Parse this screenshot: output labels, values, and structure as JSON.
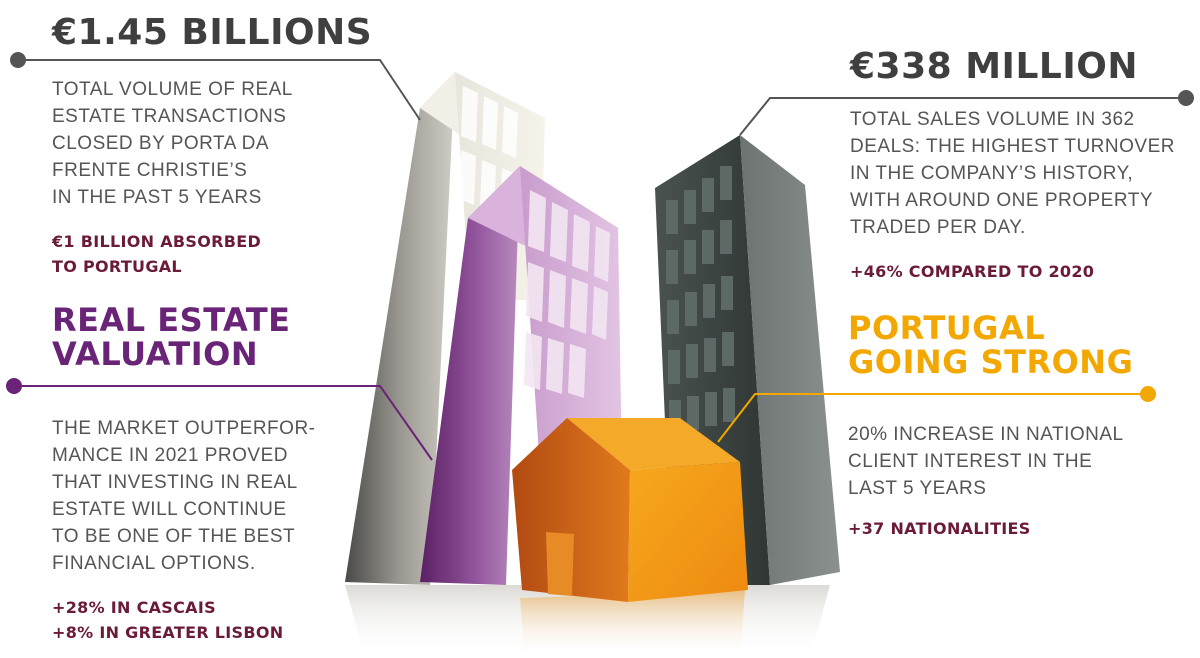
{
  "colors": {
    "dark_text": "#3f3f3f",
    "purple": "#6a2477",
    "gold": "#f2a800",
    "maroon": "#6b1a3a",
    "connector_gray": "#555555"
  },
  "blocks": {
    "sales_total": {
      "headline": "€1.45 BILLIONS",
      "body": "TOTAL VOLUME OF REAL\nESTATE TRANSACTIONS\nCLOSED BY PORTA DA\nFRENTE CHRISTIE’S\nIN THE PAST 5 YEARS",
      "highlight": "€1 BILLION ABSORBED\nTO PORTUGAL"
    },
    "sales_volume": {
      "headline": "€338 MILLION",
      "body": "TOTAL SALES VOLUME IN 362\nDEALS: THE HIGHEST TURNOVER\nIN THE COMPANY’S HISTORY,\nWITH AROUND ONE PROPERTY\nTRADED PER DAY.",
      "highlight": "+46% COMPARED TO 2020"
    },
    "valuation": {
      "headline": "REAL ESTATE\nVALUATION",
      "body": "THE MARKET OUTPERFOR-\nMANCE IN 2021 PROVED\nTHAT INVESTING IN REAL\nESTATE WILL CONTINUE\nTO BE ONE OF THE BEST\nFINANCIAL OPTIONS.",
      "highlight": "+28% IN CASCAIS\n+8% IN GREATER LISBON"
    },
    "portugal": {
      "headline": "PORTUGAL\nGOING STRONG",
      "body": "20% INCREASE IN NATIONAL\nCLIENT INTEREST IN THE\nLAST 5 YEARS",
      "highlight": "+37 NATIONALITIES"
    }
  }
}
